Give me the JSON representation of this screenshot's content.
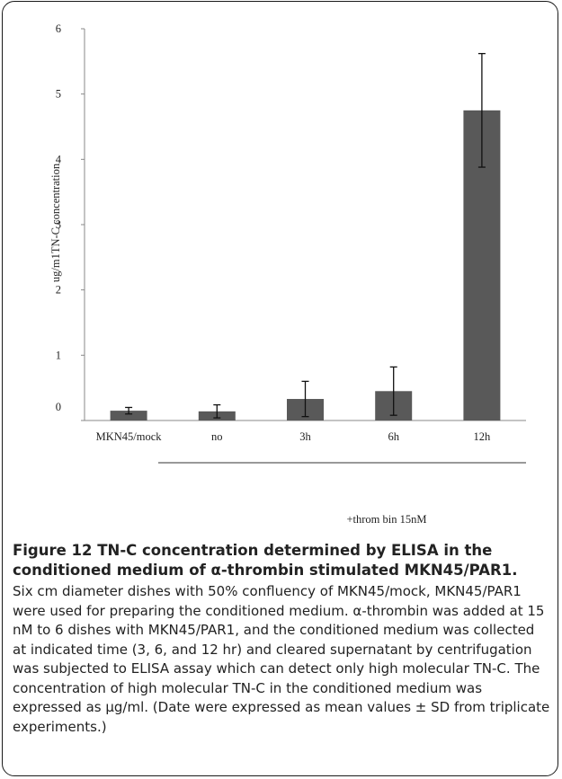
{
  "chart_data": {
    "type": "bar",
    "categories": [
      "MKN45/mock",
      "no",
      "3h",
      "6h",
      "12h"
    ],
    "values": [
      0.15,
      0.14,
      0.33,
      0.45,
      4.75
    ],
    "errors": [
      0.05,
      0.1,
      0.27,
      0.37,
      0.87
    ],
    "ylabel": "ug/m1TN-C  concentration",
    "xlabel": "",
    "ylim": [
      0,
      6
    ],
    "yticks": [
      0,
      1,
      2,
      3,
      4,
      5,
      6
    ],
    "group_label": "+throm bin 15nM",
    "bar_color": "#595959"
  },
  "caption": {
    "title": "Figure 12 TN-C concentration determined by ELISA in the conditioned medium of α-thrombin stimulated MKN45/PAR1.",
    "body": "Six cm diameter dishes with 50% confluency of MKN45/mock, MKN45/PAR1 were used for preparing the conditioned medium. α-thrombin was added at 15 nM to 6 dishes with MKN45/PAR1, and the conditioned medium was collected at indicated time (3, 6, and 12 hr) and cleared supernatant by centrifugation was subjected to ELISA assay which can detect only high molecular TN-C. The concentration of high molecular TN-C in the conditioned medium was expressed as μg/ml. (Date were expressed as mean values ± SD from triplicate experiments.)"
  }
}
